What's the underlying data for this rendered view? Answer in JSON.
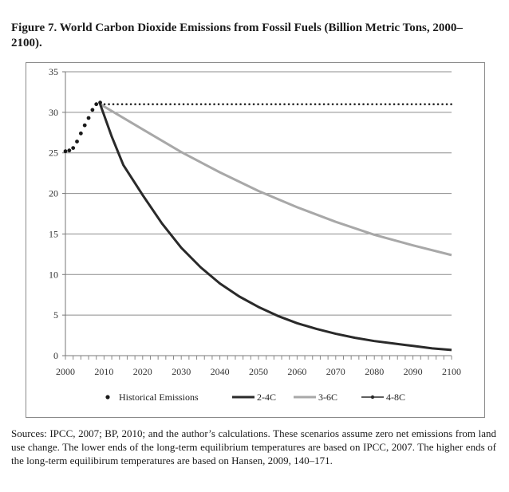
{
  "figure": {
    "title": "Figure 7. World Carbon Dioxide Emissions from Fossil Fuels (Billion Metric Tons, 2000–2100).",
    "sources": "Sources: IPCC, 2007; BP, 2010; and the author’s calculations. These scenarios assume zero net emissions from land use change. The lower ends of the long-term equilibrium temperatures are based on IPCC, 2007. The higher ends of the long-term equilibirum temperatures are based on Hansen, 2009, 140–171."
  },
  "chart_data": {
    "type": "line",
    "title": "",
    "xlabel": "",
    "ylabel": "",
    "xlim": [
      2000,
      2100
    ],
    "ylim": [
      0,
      35
    ],
    "x_ticks": [
      2000,
      2010,
      2020,
      2030,
      2040,
      2050,
      2060,
      2070,
      2080,
      2090,
      2100
    ],
    "y_ticks": [
      0,
      5,
      10,
      15,
      20,
      25,
      30,
      35
    ],
    "grid": "horizontal",
    "legend_position": "bottom",
    "series": [
      {
        "name": "Historical Emissions",
        "style": "dots",
        "color": "#1a1a1a",
        "x": [
          2000,
          2001,
          2002,
          2003,
          2004,
          2005,
          2006,
          2007,
          2008,
          2009
        ],
        "y": [
          25.2,
          25.3,
          25.6,
          26.4,
          27.4,
          28.4,
          29.3,
          30.3,
          31.0,
          31.2
        ]
      },
      {
        "name": "2-4C",
        "style": "line",
        "color": "#2a2a2a",
        "x": [
          2009,
          2012,
          2015,
          2020,
          2025,
          2030,
          2035,
          2040,
          2045,
          2050,
          2055,
          2060,
          2065,
          2070,
          2075,
          2080,
          2085,
          2090,
          2095,
          2100
        ],
        "y": [
          31.0,
          27.0,
          23.5,
          19.8,
          16.3,
          13.3,
          10.9,
          8.9,
          7.3,
          6.0,
          4.9,
          4.0,
          3.3,
          2.7,
          2.2,
          1.8,
          1.5,
          1.2,
          0.9,
          0.7
        ]
      },
      {
        "name": "3-6C",
        "style": "line",
        "color": "#a8a8a8",
        "x": [
          2009,
          2020,
          2030,
          2040,
          2050,
          2060,
          2070,
          2080,
          2090,
          2100
        ],
        "y": [
          31.0,
          27.9,
          25.1,
          22.6,
          20.3,
          18.3,
          16.5,
          14.9,
          13.6,
          12.4
        ]
      },
      {
        "name": "4-8C",
        "style": "dotted-line",
        "color": "#2a2a2a",
        "x": [
          2009,
          2012,
          2015,
          2018,
          2021,
          2024,
          2027,
          2030,
          2033,
          2036,
          2039,
          2042,
          2045,
          2048,
          2051,
          2054,
          2057,
          2060,
          2063,
          2066,
          2069,
          2072,
          2075,
          2078,
          2081,
          2084,
          2087,
          2090,
          2093,
          2096,
          2100
        ],
        "y": [
          31.0,
          31.0,
          31.0,
          31.0,
          31.0,
          31.0,
          31.0,
          31.0,
          31.0,
          31.0,
          31.0,
          31.0,
          31.0,
          31.0,
          31.0,
          31.0,
          31.0,
          31.0,
          31.0,
          31.0,
          31.0,
          31.0,
          31.0,
          31.0,
          31.0,
          31.0,
          31.0,
          31.0,
          31.0,
          31.0,
          31.0
        ]
      }
    ]
  }
}
